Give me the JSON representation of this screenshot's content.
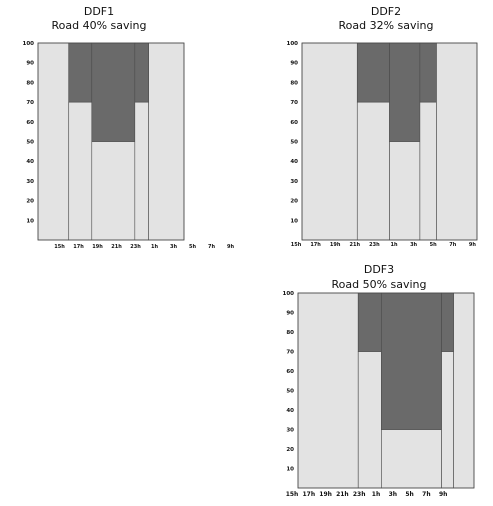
{
  "colors": {
    "light": "#e3e3e3",
    "dark": "#6a6a6a",
    "stroke": "#4a4a4a"
  },
  "chart_data": [
    {
      "type": "bar",
      "title": "DDF1",
      "subtitle": "Road 40% saving",
      "ylim": [
        0,
        100
      ],
      "yticks": [
        "100",
        "90",
        "80",
        "70",
        "60",
        "50",
        "40",
        "30",
        "20",
        "10"
      ],
      "xticks": [
        "15h",
        "17h",
        "19h",
        "21h",
        "23h",
        "1h",
        "3h",
        "5h",
        "7h",
        "9h"
      ],
      "xlim": [
        15,
        34
      ],
      "periods": [
        {
          "start": 15,
          "end": 19,
          "value": 100,
          "saving": 0
        },
        {
          "start": 19,
          "end": 22,
          "value": 70,
          "saving": 30
        },
        {
          "start": 22,
          "end": 27.6,
          "value": 50,
          "saving": 50
        },
        {
          "start": 27.6,
          "end": 29.4,
          "value": 70,
          "saving": 30
        },
        {
          "start": 29.4,
          "end": 34,
          "value": 100,
          "saving": 0
        }
      ]
    },
    {
      "type": "bar",
      "title": "DDF2",
      "subtitle": "Road 32% saving",
      "ylim": [
        0,
        100
      ],
      "yticks": [
        "100",
        "90",
        "80",
        "70",
        "60",
        "50",
        "40",
        "30",
        "20",
        "10"
      ],
      "xticks": [
        "15h",
        "17h",
        "19h",
        "21h",
        "23h",
        "1h",
        "3h",
        "5h",
        "7h",
        "9h"
      ],
      "xlim": [
        15,
        34
      ],
      "periods": [
        {
          "start": 15,
          "end": 21,
          "value": 100,
          "saving": 0
        },
        {
          "start": 21,
          "end": 24.5,
          "value": 70,
          "saving": 30
        },
        {
          "start": 24.5,
          "end": 27.8,
          "value": 50,
          "saving": 50
        },
        {
          "start": 27.8,
          "end": 29.6,
          "value": 70,
          "saving": 30
        },
        {
          "start": 29.6,
          "end": 34,
          "value": 100,
          "saving": 0
        }
      ]
    },
    {
      "type": "bar",
      "title": "DDF3",
      "subtitle": "Road 50% saving",
      "ylim": [
        0,
        100
      ],
      "yticks": [
        "100",
        "90",
        "80",
        "70",
        "60",
        "50",
        "40",
        "30",
        "20",
        "10"
      ],
      "xticks": [
        "15h",
        "17h",
        "19h",
        "21h",
        "23h",
        "1h",
        "3h",
        "5h",
        "7h",
        "9h"
      ],
      "xlim": [
        15,
        34
      ],
      "periods": [
        {
          "start": 15,
          "end": 21.5,
          "value": 100,
          "saving": 0
        },
        {
          "start": 21.5,
          "end": 24,
          "value": 70,
          "saving": 30
        },
        {
          "start": 24,
          "end": 30.5,
          "value": 30,
          "saving": 70
        },
        {
          "start": 30.5,
          "end": 31.8,
          "value": 70,
          "saving": 30
        },
        {
          "start": 31.8,
          "end": 34,
          "value": 100,
          "saving": 0
        }
      ]
    }
  ]
}
